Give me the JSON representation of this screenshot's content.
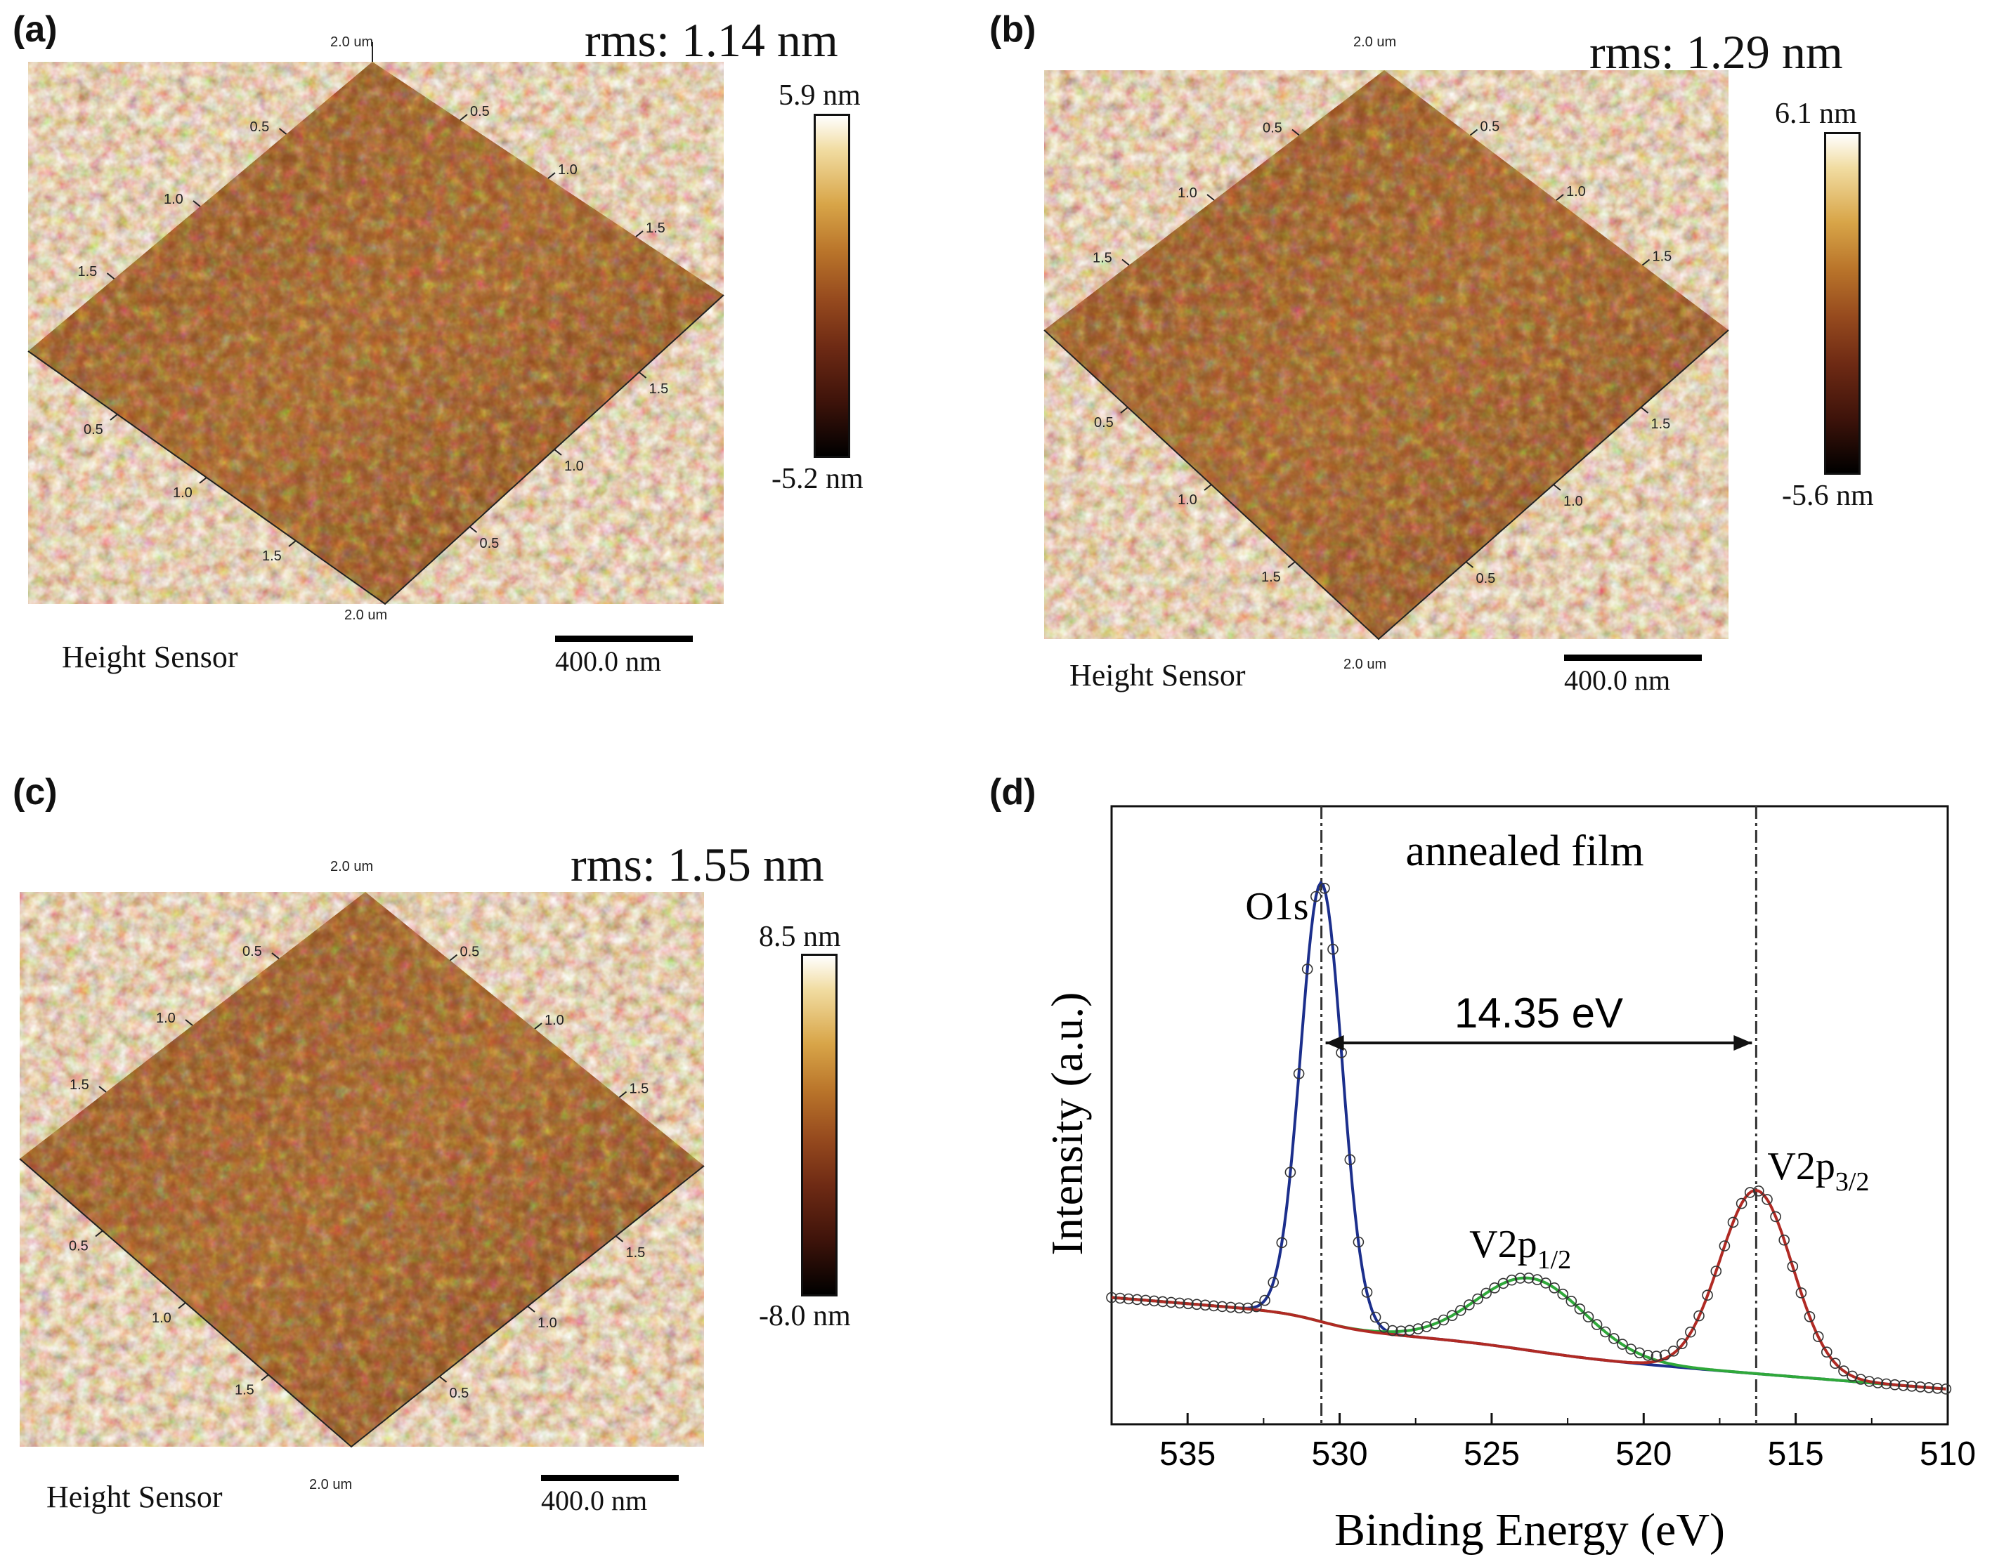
{
  "panels": {
    "a": {
      "label": "(a)",
      "rms": "rms: 1.14 nm",
      "sensor": "Height Sensor",
      "scale_bar": "400.0 nm",
      "cbar_max": "5.9 nm",
      "cbar_min": "-5.2 nm",
      "axis_ticks": {
        "corner": "2.0 um",
        "ticks": [
          "0.5",
          "1.0",
          "1.5"
        ]
      }
    },
    "b": {
      "label": "(b)",
      "rms": "rms: 1.29 nm",
      "sensor": "Height Sensor",
      "scale_bar": "400.0 nm",
      "cbar_max": "6.1 nm",
      "cbar_min": "-5.6 nm",
      "axis_ticks": {
        "corner": "2.0 um",
        "ticks": [
          "0.5",
          "1.0",
          "1.5"
        ]
      }
    },
    "c": {
      "label": "(c)",
      "rms": "rms: 1.55 nm",
      "sensor": "Height Sensor",
      "scale_bar": "400.0 nm",
      "cbar_max": "8.5 nm",
      "cbar_min": "-8.0 nm",
      "axis_ticks": {
        "corner": "2.0 um",
        "ticks": [
          "0.5",
          "1.0",
          "1.5"
        ]
      }
    },
    "d": {
      "label": "(d)"
    }
  },
  "colors": {
    "afm_dark": "#3a1208",
    "afm_mid": "#8a4a1a",
    "afm_light": "#e8c070",
    "fit_o1s": "#1c2f8c",
    "fit_v2p12": "#2fa83a",
    "fit_v2p32": "#b02a24",
    "background_line": "#2a3fa8",
    "data_markers": "#333333"
  },
  "chart_data": {
    "type": "line",
    "title": "annealed film",
    "xlabel": "Binding Energy (eV)",
    "ylabel": "Intensity (a.u.)",
    "xlim": [
      537.5,
      510
    ],
    "x_reversed": true,
    "xticks": [
      535,
      530,
      525,
      520,
      515,
      510
    ],
    "yticks_shown": false,
    "series": [
      {
        "name": "O1s",
        "peak_center_eV": 530.6,
        "peak_height": 0.91,
        "fwhm_eV": 1.6
      },
      {
        "name": "V2p1/2",
        "peak_center_eV": 523.7,
        "peak_height": 0.15,
        "fwhm_eV": 4.2
      },
      {
        "name": "V2p3/2",
        "peak_center_eV": 516.3,
        "peak_height": 0.38,
        "fwhm_eV": 2.8
      }
    ],
    "baseline": {
      "at_537": 0.14,
      "at_510": 0.0
    },
    "reference_lines_eV": [
      530.6,
      516.3
    ],
    "annotations": [
      {
        "text": "14.35 eV",
        "from_eV": 530.6,
        "to_eV": 516.3
      },
      {
        "text": "O1s",
        "at_eV": 530.6
      },
      {
        "text": "V2p",
        "sub": "1/2",
        "at_eV": 523.7
      },
      {
        "text": "V2p",
        "sub": "3/2",
        "at_eV": 516.3
      }
    ]
  }
}
